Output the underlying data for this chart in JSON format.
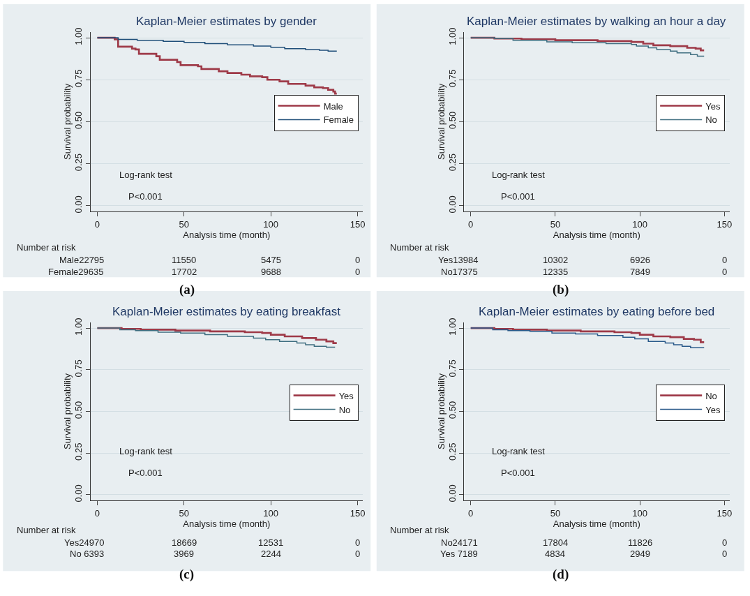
{
  "chart_data": [
    {
      "type": "step",
      "title": "Kaplan-Meier estimates by gender",
      "xlabel": "Analysis time (month)",
      "ylabel": "Survival probability",
      "xlim": [
        -4,
        153
      ],
      "xticks": [
        0,
        50,
        100,
        150
      ],
      "ylim": [
        -0.035,
        1.035
      ],
      "yticks": [
        {
          "value": 0,
          "label": "0.00"
        },
        {
          "value": 0.25,
          "label": "0.25"
        },
        {
          "value": 0.5,
          "label": "0.50"
        },
        {
          "value": 0.75,
          "label": "0.75"
        },
        {
          "value": 1,
          "label": "1.00"
        }
      ],
      "grid": "y",
      "legend": "right",
      "line_style": "solid",
      "marker": "none",
      "series": [
        {
          "name": "Male",
          "color": "#9e3a48",
          "x": [
            0,
            10,
            12,
            20,
            22,
            24,
            34,
            36,
            46,
            48,
            58,
            60,
            70,
            75,
            83,
            88,
            95,
            98,
            105,
            110,
            120,
            125,
            130,
            133,
            136,
            137,
            138
          ],
          "values": [
            1,
            0.99,
            0.947,
            0.935,
            0.93,
            0.904,
            0.89,
            0.869,
            0.855,
            0.837,
            0.83,
            0.814,
            0.8,
            0.79,
            0.78,
            0.77,
            0.765,
            0.75,
            0.74,
            0.725,
            0.715,
            0.705,
            0.7,
            0.69,
            0.68,
            0.667,
            0.667
          ]
        },
        {
          "name": "Female",
          "color": "#1f4e79",
          "x": [
            0,
            11,
            12,
            23,
            38,
            50,
            62,
            75,
            90,
            100,
            108,
            120,
            128,
            133,
            138
          ],
          "values": [
            1,
            1,
            0.99,
            0.985,
            0.978,
            0.972,
            0.965,
            0.958,
            0.95,
            0.943,
            0.935,
            0.93,
            0.925,
            0.92,
            0.92
          ]
        }
      ],
      "annotations": [
        "Log-rank test",
        "P<0.001",
        "Number at risk",
        "Male22795",
        "11550",
        "5475",
        "0",
        "Female29635",
        "17702",
        "9688",
        "0",
        "(a)"
      ]
    },
    {
      "type": "step",
      "title": "Kaplan-Meier estimates by walking an hour a day",
      "xlabel": "Analysis time (month)",
      "ylabel": "Survival probability",
      "xlim": [
        -4,
        153
      ],
      "xticks": [
        0,
        50,
        100,
        150
      ],
      "ylim": [
        -0.035,
        1.035
      ],
      "yticks": [
        {
          "value": 0,
          "label": "0.00"
        },
        {
          "value": 0.25,
          "label": "0.25"
        },
        {
          "value": 0.5,
          "label": "0.50"
        },
        {
          "value": 0.75,
          "label": "0.75"
        },
        {
          "value": 1,
          "label": "1.00"
        }
      ],
      "grid": "y",
      "legend": "right",
      "line_style": "solid",
      "marker": "none",
      "series": [
        {
          "name": "Yes",
          "color": "#9e3a48",
          "x": [
            0,
            10,
            14,
            30,
            50,
            75,
            95,
            102,
            108,
            118,
            128,
            133,
            136,
            138
          ],
          "values": [
            1,
            1,
            0.995,
            0.99,
            0.985,
            0.98,
            0.975,
            0.965,
            0.955,
            0.95,
            0.94,
            0.935,
            0.925,
            0.925
          ]
        },
        {
          "name": "No",
          "color": "#3f6e80",
          "x": [
            0,
            10,
            14,
            25,
            45,
            60,
            80,
            95,
            98,
            105,
            110,
            118,
            122,
            130,
            134,
            138
          ],
          "values": [
            1,
            1,
            0.995,
            0.985,
            0.975,
            0.97,
            0.965,
            0.96,
            0.95,
            0.94,
            0.93,
            0.92,
            0.91,
            0.9,
            0.89,
            0.89
          ]
        }
      ],
      "annotations": [
        "Log-rank test",
        "P<0.001",
        "Number at risk",
        "Yes13984",
        "10302",
        "6926",
        "0",
        "No17375",
        "12335",
        "7849",
        "0",
        "(b)"
      ]
    },
    {
      "type": "step",
      "title": "Kaplan-Meier estimates by eating breakfast",
      "xlabel": "Analysis time (month)",
      "ylabel": "Survival probability",
      "xlim": [
        -4,
        153
      ],
      "xticks": [
        0,
        50,
        100,
        150
      ],
      "ylim": [
        -0.035,
        1.035
      ],
      "yticks": [
        {
          "value": 0,
          "label": "0.00"
        },
        {
          "value": 0.25,
          "label": "0.25"
        },
        {
          "value": 0.5,
          "label": "0.50"
        },
        {
          "value": 0.75,
          "label": "0.75"
        },
        {
          "value": 1,
          "label": "1.00"
        }
      ],
      "grid": "y",
      "legend": "right",
      "line_style": "solid",
      "marker": "none",
      "series": [
        {
          "name": "Yes",
          "color": "#9e3a48",
          "x": [
            0,
            11,
            14,
            25,
            45,
            65,
            85,
            95,
            100,
            108,
            118,
            126,
            132,
            136,
            138
          ],
          "values": [
            1,
            1,
            0.995,
            0.99,
            0.985,
            0.98,
            0.975,
            0.97,
            0.96,
            0.95,
            0.94,
            0.93,
            0.92,
            0.91,
            0.91
          ]
        },
        {
          "name": "No",
          "color": "#3f6e80",
          "x": [
            0,
            11,
            13,
            22,
            35,
            48,
            62,
            75,
            90,
            97,
            105,
            115,
            120,
            125,
            132,
            137
          ],
          "values": [
            1,
            1,
            0.99,
            0.985,
            0.975,
            0.97,
            0.96,
            0.95,
            0.94,
            0.93,
            0.92,
            0.91,
            0.9,
            0.89,
            0.885,
            0.885
          ]
        }
      ],
      "annotations": [
        "Log-rank test",
        "P<0.001",
        "Number at risk",
        "Yes24970",
        "18669",
        "12531",
        "0",
        "No 6393",
        "3969",
        "2244",
        "0",
        "(c)"
      ]
    },
    {
      "type": "step",
      "title": "Kaplan-Meier estimates by eating before bed",
      "xlabel": "Analysis time (month)",
      "ylabel": "Survival probability",
      "xlim": [
        -4,
        153
      ],
      "xticks": [
        0,
        50,
        100,
        150
      ],
      "ylim": [
        -0.035,
        1.035
      ],
      "yticks": [
        {
          "value": 0,
          "label": "0.00"
        },
        {
          "value": 0.25,
          "label": "0.25"
        },
        {
          "value": 0.5,
          "label": "0.50"
        },
        {
          "value": 0.75,
          "label": "0.75"
        },
        {
          "value": 1,
          "label": "1.00"
        }
      ],
      "grid": "y",
      "legend": "right",
      "line_style": "solid",
      "marker": "none",
      "series": [
        {
          "name": "No",
          "color": "#9e3a48",
          "x": [
            0,
            11,
            14,
            25,
            45,
            65,
            85,
            95,
            100,
            108,
            118,
            126,
            132,
            136,
            138
          ],
          "values": [
            1,
            1,
            0.995,
            0.99,
            0.985,
            0.98,
            0.975,
            0.97,
            0.96,
            0.95,
            0.945,
            0.935,
            0.93,
            0.915,
            0.915
          ]
        },
        {
          "name": "Yes",
          "color": "#2a5a8a",
          "x": [
            0,
            11,
            13,
            22,
            35,
            48,
            62,
            75,
            90,
            97,
            105,
            115,
            120,
            125,
            130,
            138
          ],
          "values": [
            1,
            1,
            0.99,
            0.985,
            0.98,
            0.97,
            0.965,
            0.955,
            0.945,
            0.935,
            0.92,
            0.91,
            0.9,
            0.89,
            0.882,
            0.882
          ]
        }
      ],
      "annotations": [
        "Log-rank test",
        "P<0.001",
        "Number at risk",
        "No24171",
        "17804",
        "11826",
        "0",
        "Yes 7189",
        "4834",
        "2949",
        "0",
        "(d)"
      ]
    }
  ]
}
